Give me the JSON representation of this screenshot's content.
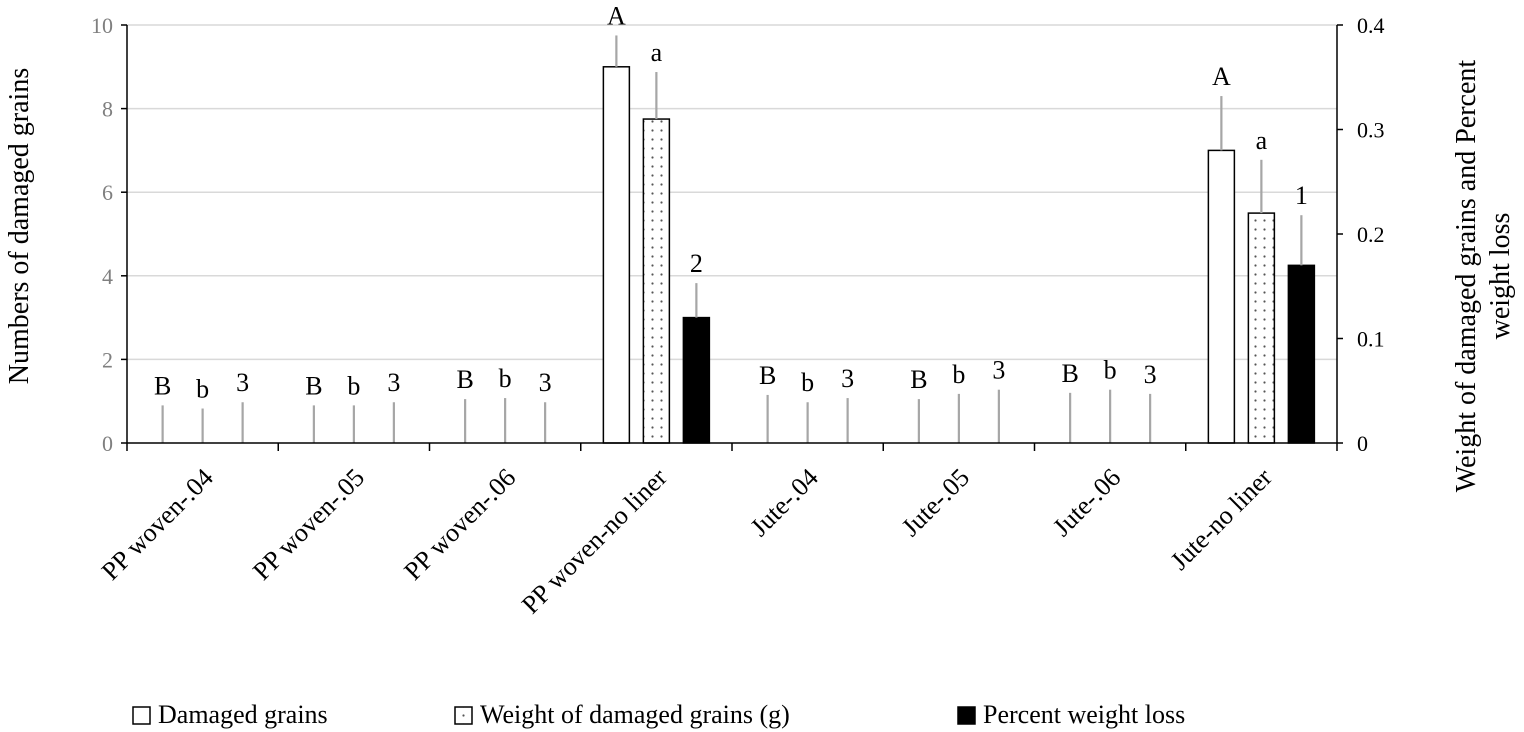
{
  "chart_data": {
    "type": "bar",
    "categories": [
      "PP woven-.04",
      "PP woven-.05",
      "PP woven-.06",
      "PP woven-no liner",
      "Jute-.04",
      "Jute-.05",
      "Jute-.06",
      "Jute-no liner"
    ],
    "left_axis": {
      "label": "Numbers of damaged grains",
      "ylim": [
        0,
        10
      ],
      "ticks": [
        "0",
        "2",
        "4",
        "6",
        "8",
        "10"
      ]
    },
    "right_axis": {
      "label_lines": [
        "Weight of damaged grains and Percent",
        "weight loss"
      ],
      "ylim": [
        0,
        0.4
      ],
      "ticks": [
        "0",
        "0.1",
        "0.2",
        "0.3",
        "0.4"
      ]
    },
    "series": [
      {
        "name": "Damaged grains",
        "axis": "left",
        "fill": "white",
        "values": [
          0,
          0,
          0,
          9,
          0,
          0,
          0,
          7
        ],
        "error_top": [
          0.9,
          0.9,
          1.05,
          9.75,
          1.15,
          1.05,
          1.2,
          8.3
        ],
        "labels": [
          "B",
          "B",
          "B",
          "A",
          "B",
          "B",
          "B",
          "A"
        ]
      },
      {
        "name": "Weight of damaged grains (g)",
        "axis": "right",
        "fill": "dotted",
        "values": [
          0,
          0,
          0,
          0.31,
          0,
          0,
          0,
          0.22
        ],
        "error_top": [
          0.033,
          0.036,
          0.043,
          0.355,
          0.039,
          0.047,
          0.051,
          0.271
        ],
        "labels": [
          "b",
          "b",
          "b",
          "a",
          "b",
          "b",
          "b",
          "a"
        ]
      },
      {
        "name": "Percent weight loss",
        "axis": "right",
        "fill": "black",
        "values": [
          0,
          0,
          0,
          0.12,
          0,
          0,
          0,
          0.17
        ],
        "error_top": [
          0.039,
          0.039,
          0.039,
          0.153,
          0.043,
          0.051,
          0.047,
          0.218
        ],
        "labels": [
          "3",
          "3",
          "3",
          "2",
          "3",
          "3",
          "3",
          "1"
        ]
      }
    ],
    "grid": true,
    "legend": "bottom"
  },
  "colors": {
    "axis": "#000000",
    "grid": "#d9d9d9",
    "error_bar": "#a6a6a6",
    "left_tick_label": "#7f7f7f",
    "bar_black": "#000000"
  }
}
